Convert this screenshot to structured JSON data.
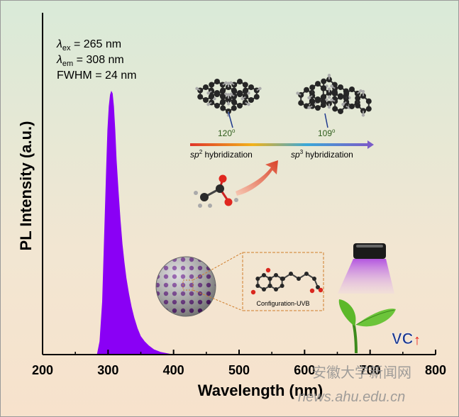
{
  "chart_data": {
    "type": "area",
    "xlabel": "Wavelength (nm)",
    "ylabel": "PL Intensity (a.u.)",
    "xlim": [
      200,
      800
    ],
    "ylim": [
      0,
      1
    ],
    "x_ticks": [
      200,
      300,
      400,
      500,
      600,
      700,
      800
    ],
    "x_tick_labels": [
      "200",
      "300",
      "400",
      "500",
      "600",
      "700",
      "800"
    ],
    "y_ticks": [],
    "grid": false,
    "series": [
      {
        "color": "#8a00f5",
        "x": [
          283,
          287,
          291,
          294,
          297,
          299,
          301,
          303,
          305,
          307,
          309,
          311,
          313,
          316,
          319,
          322,
          325,
          328,
          332,
          336,
          340,
          345,
          350,
          356,
          362,
          370,
          380,
          392,
          400
        ],
        "y": [
          0.0,
          0.05,
          0.2,
          0.45,
          0.7,
          0.85,
          0.94,
          0.985,
          1.0,
          0.99,
          0.94,
          0.85,
          0.74,
          0.62,
          0.51,
          0.42,
          0.35,
          0.29,
          0.23,
          0.18,
          0.14,
          0.1,
          0.07,
          0.05,
          0.035,
          0.02,
          0.01,
          0.004,
          0.0
        ]
      }
    ],
    "annotations": {
      "line1_symbol": "λ",
      "line1_sub": "ex",
      "line1_value": " = 265 nm",
      "line2_symbol": "λ",
      "line2_sub": "em",
      "line2_value": " = 308 nm",
      "line3": "FWHM = 24 nm",
      "angle_sp2": "120",
      "angle_sp3": "109",
      "deg": "o",
      "sp2_prefix": "sp",
      "sp2_sup": "2",
      "sp2_suffix": " hybridization",
      "sp3_prefix": "sp",
      "sp3_sup": "3",
      "sp3_suffix": " hybridization",
      "config_label": "Configuration-UVB",
      "vc_label": "VC",
      "vc_arrow": "↑"
    },
    "watermark": {
      "cn": "安徽大学新闻网",
      "url": "news.ahu.edu.cn"
    }
  },
  "colors": {
    "peak": "#8a00f5",
    "axis": "#000000",
    "ring": "#6b1f8f",
    "vc": "#1f3a8f",
    "vc_arrow": "#e8201a",
    "leaf": "#5cb82a"
  }
}
